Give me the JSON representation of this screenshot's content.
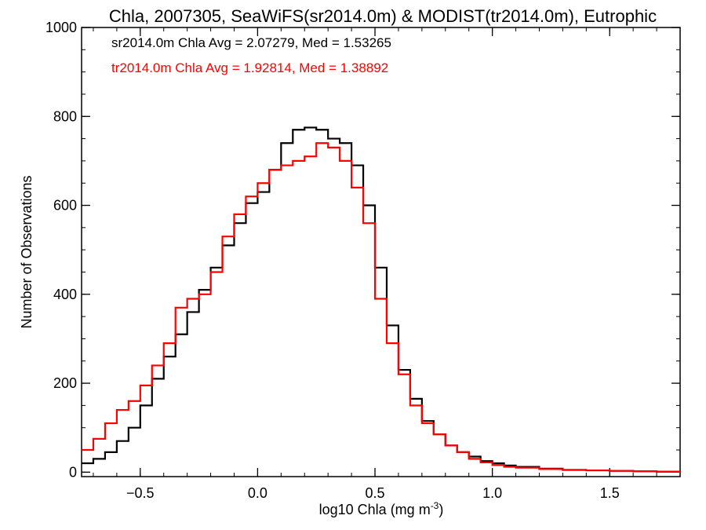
{
  "chart_data": {
    "type": "line",
    "title": "Chla, 2007305, SeaWiFS(sr2014.0m) & MODIST(tr2014.0m), Eutrophic",
    "xlabel": "log10 Chla (mg m",
    "xlabel_sup": "-3",
    "xlabel_close": ")",
    "ylabel": "Number of Observations",
    "xlim": [
      -0.75,
      1.8
    ],
    "ylim": [
      -10,
      1000
    ],
    "x_ticks": [
      -0.5,
      0.0,
      0.5,
      1.0,
      1.5
    ],
    "x_tick_labels": [
      "−0.5",
      "0.0",
      "0.5",
      "1.0",
      "1.5"
    ],
    "y_ticks": [
      0,
      200,
      400,
      600,
      800,
      1000
    ],
    "y_tick_labels": [
      "0",
      "200",
      "400",
      "600",
      "800",
      "1000"
    ],
    "step_style": "histogram",
    "annotations": [
      {
        "text": "sr2014.0m Chla Avg = 2.07279, Med = 1.53265",
        "color": "#000000"
      },
      {
        "text": "tr2014.0m Chla Avg = 1.92814, Med = 1.38892",
        "color": "#ff0000"
      }
    ],
    "series": [
      {
        "color": "#000000",
        "x": [
          -0.75,
          -0.7,
          -0.65,
          -0.6,
          -0.55,
          -0.5,
          -0.45,
          -0.4,
          -0.35,
          -0.3,
          -0.25,
          -0.2,
          -0.15,
          -0.1,
          -0.05,
          0.0,
          0.05,
          0.1,
          0.15,
          0.2,
          0.25,
          0.3,
          0.35,
          0.4,
          0.45,
          0.5,
          0.55,
          0.6,
          0.65,
          0.7,
          0.75,
          0.8,
          0.85,
          0.9,
          0.95,
          1.0,
          1.05,
          1.1,
          1.2,
          1.3,
          1.4,
          1.5,
          1.6,
          1.7,
          1.8
        ],
        "values": [
          20,
          30,
          45,
          70,
          100,
          150,
          210,
          260,
          310,
          360,
          410,
          460,
          510,
          560,
          605,
          630,
          680,
          740,
          770,
          775,
          770,
          750,
          740,
          690,
          600,
          460,
          330,
          230,
          165,
          115,
          85,
          60,
          45,
          35,
          25,
          20,
          15,
          12,
          8,
          5,
          4,
          3,
          2,
          1,
          1
        ]
      },
      {
        "color": "#ff0000",
        "x": [
          -0.75,
          -0.7,
          -0.65,
          -0.6,
          -0.55,
          -0.5,
          -0.45,
          -0.4,
          -0.35,
          -0.3,
          -0.25,
          -0.2,
          -0.15,
          -0.1,
          -0.05,
          0.0,
          0.05,
          0.1,
          0.15,
          0.2,
          0.25,
          0.3,
          0.35,
          0.4,
          0.45,
          0.5,
          0.55,
          0.6,
          0.65,
          0.7,
          0.75,
          0.8,
          0.85,
          0.9,
          0.95,
          1.0,
          1.05,
          1.1,
          1.2,
          1.3,
          1.4,
          1.5,
          1.6,
          1.7,
          1.8
        ],
        "values": [
          50,
          75,
          110,
          140,
          160,
          195,
          240,
          290,
          370,
          390,
          400,
          450,
          530,
          580,
          620,
          650,
          680,
          690,
          700,
          710,
          740,
          730,
          700,
          640,
          560,
          390,
          290,
          220,
          150,
          110,
          85,
          60,
          45,
          30,
          22,
          16,
          12,
          10,
          7,
          5,
          4,
          3,
          2,
          1,
          1
        ]
      }
    ]
  }
}
